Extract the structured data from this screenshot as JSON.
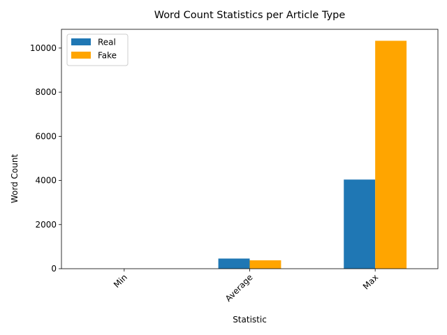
{
  "chart_data": {
    "type": "bar",
    "title": "Word Count Statistics per Article Type",
    "xlabel": "Statistic",
    "ylabel": "Word Count",
    "categories": [
      "Min",
      "Average",
      "Max"
    ],
    "series": [
      {
        "name": "Real",
        "color": "#1f77b4",
        "values": [
          1,
          460,
          4040
        ]
      },
      {
        "name": "Fake",
        "color": "#ffa500",
        "values": [
          1,
          380,
          10330
        ]
      }
    ],
    "ylim": [
      0,
      10850
    ],
    "yticks": [
      0,
      2000,
      4000,
      6000,
      8000,
      10000
    ],
    "grid": false,
    "legend_position": "top-left",
    "xtick_rotation": 45
  }
}
